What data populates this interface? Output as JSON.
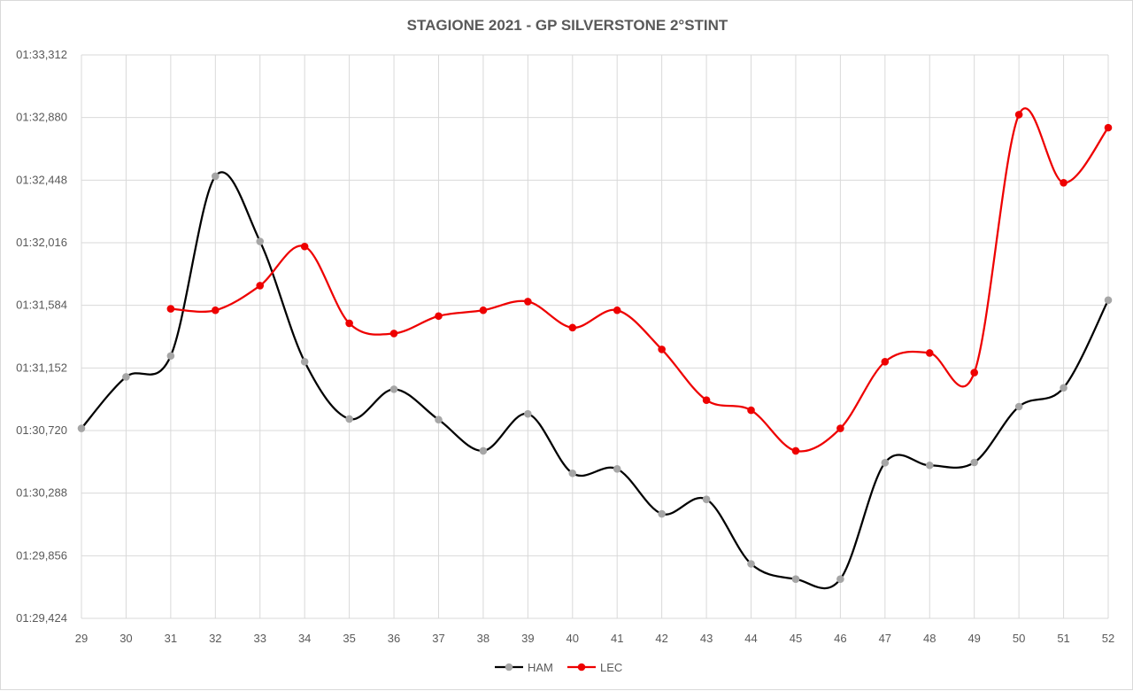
{
  "chart_data": {
    "type": "line",
    "title": "STAGIONE 2021 - GP SILVERSTONE 2°STINT",
    "xlabel": "",
    "ylabel": "",
    "x": [
      29,
      30,
      31,
      32,
      33,
      34,
      35,
      36,
      37,
      38,
      39,
      40,
      41,
      42,
      43,
      44,
      45,
      46,
      47,
      48,
      49,
      50,
      51,
      52
    ],
    "y_ticks": [
      "01:29,424",
      "01:29,856",
      "01:30,288",
      "01:30,720",
      "01:31,152",
      "01:31,584",
      "01:32,016",
      "01:32,448",
      "01:32,880",
      "01:33,312"
    ],
    "ylim_seconds": [
      89.424,
      93.312
    ],
    "grid": true,
    "legend_position": "bottom",
    "series": [
      {
        "name": "HAM",
        "line_color": "#000000",
        "marker_color": "#a6a6a6",
        "values_seconds": [
          90.735,
          91.09,
          91.235,
          92.475,
          92.025,
          91.195,
          90.8,
          91.005,
          90.795,
          90.58,
          90.835,
          90.425,
          90.455,
          90.145,
          90.245,
          89.8,
          89.695,
          89.695,
          90.498,
          90.48,
          90.5,
          90.885,
          91.015,
          91.62
        ]
      },
      {
        "name": "LEC",
        "line_color": "#ee0000",
        "marker_color": "#ee0000",
        "values_seconds": [
          null,
          null,
          91.56,
          91.55,
          91.72,
          91.99,
          91.46,
          91.39,
          91.51,
          91.55,
          91.61,
          91.43,
          91.55,
          91.28,
          90.93,
          90.86,
          90.58,
          90.735,
          91.195,
          91.255,
          91.12,
          92.9,
          92.43,
          92.81
        ]
      }
    ]
  }
}
